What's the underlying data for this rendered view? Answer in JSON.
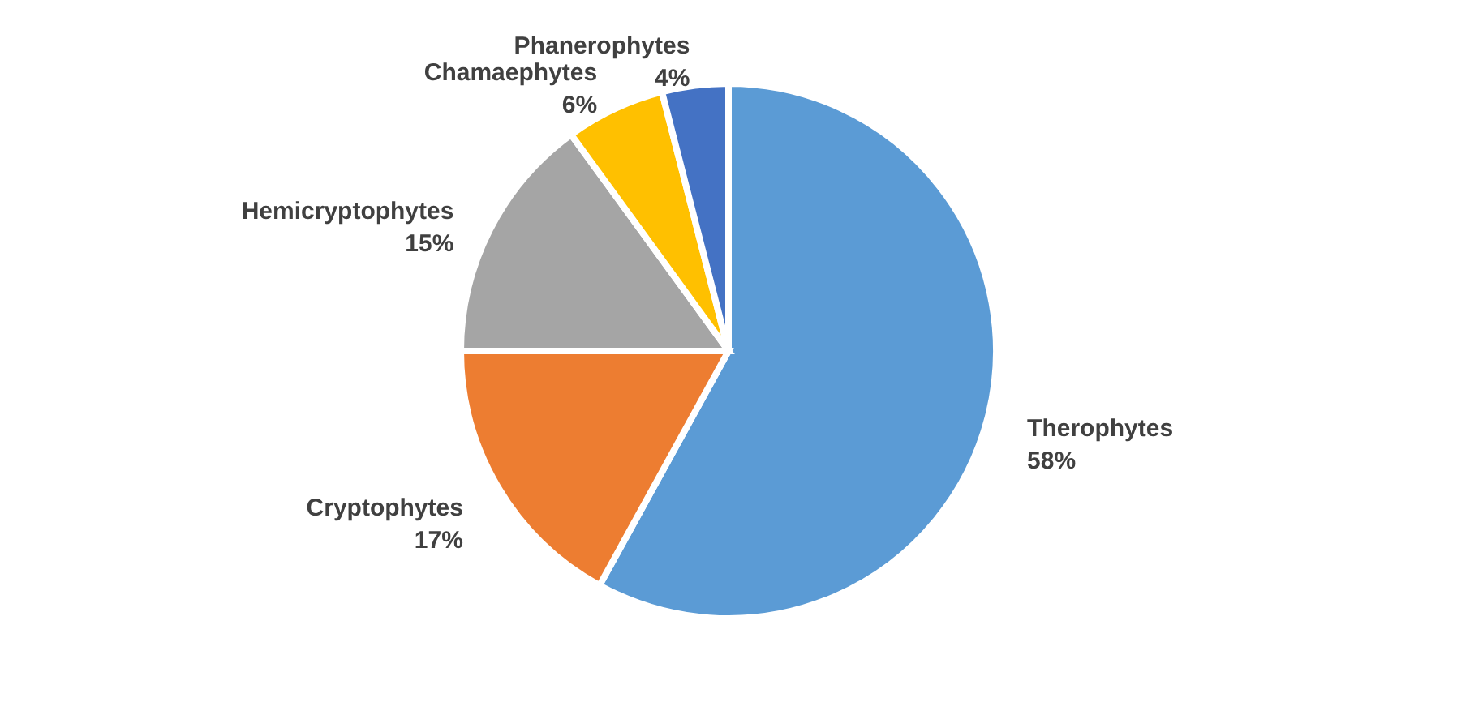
{
  "chart_data": {
    "type": "pie",
    "categories": [
      "Therophytes",
      "Cryptophytes",
      "Hemicryptophytes",
      "Chamaephytes",
      "Phanerophytes"
    ],
    "values": [
      58,
      17,
      15,
      6,
      4
    ],
    "colors": [
      "#5b9bd5",
      "#ed7d31",
      "#a5a5a5",
      "#ffc000",
      "#4472c4"
    ],
    "value_labels": [
      "58%",
      "17%",
      "15%",
      "6%",
      "4%"
    ],
    "legend": false
  }
}
